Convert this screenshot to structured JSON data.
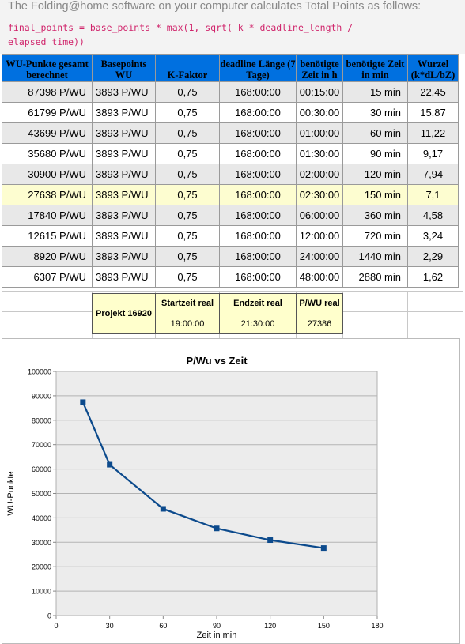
{
  "intro": {
    "text": "The Folding@home software on your computer calculates Total Points as follows:",
    "code": "final_points = base_points * max(1, sqrt( k * deadline_length /\nelapsed_time))"
  },
  "table": {
    "headers": [
      "WU-Punkte gesamt berechnet",
      "Basepoints WU",
      "K-Faktor",
      "deadline Länge (7 Tage)",
      "benötigte Zeit in h",
      "benötigte Zeit in min",
      "Wurzel (k*dL/bZ)"
    ],
    "rows": [
      [
        "87398 P/WU",
        "3893 P/WU",
        "0,75",
        "168:00:00",
        "00:15:00",
        "15 min",
        "22,45"
      ],
      [
        "61799 P/WU",
        "3893 P/WU",
        "0,75",
        "168:00:00",
        "00:30:00",
        "30 min",
        "15,87"
      ],
      [
        "43699 P/WU",
        "3893 P/WU",
        "0,75",
        "168:00:00",
        "01:00:00",
        "60 min",
        "11,22"
      ],
      [
        "35680 P/WU",
        "3893 P/WU",
        "0,75",
        "168:00:00",
        "01:30:00",
        "90 min",
        "9,17"
      ],
      [
        "30900 P/WU",
        "3893 P/WU",
        "0,75",
        "168:00:00",
        "02:00:00",
        "120 min",
        "7,94"
      ],
      [
        "27638 P/WU",
        "3893 P/WU",
        "0,75",
        "168:00:00",
        "02:30:00",
        "150 min",
        "7,1"
      ],
      [
        "17840 P/WU",
        "3893 P/WU",
        "0,75",
        "168:00:00",
        "06:00:00",
        "360 min",
        "4,58"
      ],
      [
        "12615 P/WU",
        "3893 P/WU",
        "0,75",
        "168:00:00",
        "12:00:00",
        "720 min",
        "3,24"
      ],
      [
        "8920 P/WU",
        "3893 P/WU",
        "0,75",
        "168:00:00",
        "24:00:00",
        "1440 min",
        "2,29"
      ],
      [
        "6307 P/WU",
        "3893 P/WU",
        "0,75",
        "168:00:00",
        "48:00:00",
        "2880 min",
        "1,62"
      ]
    ],
    "highlight_row": 5
  },
  "project": {
    "label": "Projekt 16920",
    "headers": [
      "Startzeit real",
      "Endzeit real",
      "P/WU real"
    ],
    "values": [
      "19:00:00",
      "21:30:00",
      "27386"
    ]
  },
  "chart_data": {
    "type": "line",
    "title": "P/Wu vs Zeit",
    "xlabel": "Zeit in min",
    "ylabel": "WU-Punkte",
    "x": [
      15,
      30,
      60,
      90,
      120,
      150
    ],
    "series": [
      {
        "values": [
          87398,
          61799,
          43699,
          35680,
          30900,
          27638
        ],
        "color": "#0c4a8c"
      }
    ],
    "xlim": [
      0,
      180
    ],
    "ylim": [
      0,
      100000
    ],
    "xticks": [
      0,
      30,
      60,
      90,
      120,
      150,
      180
    ],
    "yticks": [
      0,
      10000,
      20000,
      30000,
      40000,
      50000,
      60000,
      70000,
      80000,
      90000,
      100000
    ],
    "plot_background": "#ececec",
    "grid": true,
    "legend": "none"
  }
}
